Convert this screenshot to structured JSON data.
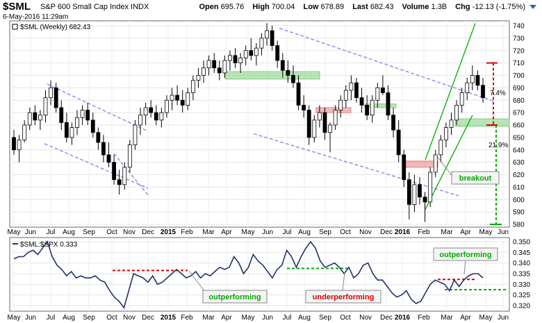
{
  "header": {
    "symbol": "$SML",
    "name": "S&P 600 Small Cap Index  INDX",
    "date": "6-May-2016 11:29am",
    "open_label": "Open",
    "open": "695.76",
    "high_label": "High",
    "high": "700.04",
    "low_label": "Low",
    "low": "678.89",
    "last_label": "Last",
    "last": "682.43",
    "volume_label": "Volume",
    "volume": "1.3B",
    "chg_label": "Chg",
    "chg": "-12.13 (-1.75%)"
  },
  "chart_data": [
    {
      "type": "candlestick",
      "legend": "$SML (Weekly) 682.43",
      "ylim": [
        575,
        745
      ],
      "yticks": [
        580,
        590,
        600,
        610,
        620,
        630,
        640,
        650,
        660,
        670,
        680,
        690,
        700,
        710,
        720,
        730,
        740
      ],
      "x_tick_labels": [
        "May",
        "Jun",
        "Jul",
        "Aug",
        "Sep",
        "Oct",
        "Nov",
        "Dec",
        "2015",
        "Feb",
        "Mar",
        "Apr",
        "May",
        "Jun",
        "Jul",
        "Aug",
        "Sep",
        "Oct",
        "Nov",
        "Dec",
        "2016",
        "Feb",
        "Mar",
        "Apr",
        "May",
        "Jun"
      ],
      "bold_x_labels": [
        "2015",
        "2016"
      ],
      "candles": [
        [
          650,
          656,
          636,
          640
        ],
        [
          640,
          652,
          630,
          648
        ],
        [
          648,
          664,
          646,
          660
        ],
        [
          660,
          674,
          656,
          670
        ],
        [
          670,
          676,
          660,
          664
        ],
        [
          664,
          672,
          656,
          668
        ],
        [
          668,
          688,
          662,
          682
        ],
        [
          682,
          696,
          676,
          690
        ],
        [
          690,
          694,
          670,
          674
        ],
        [
          674,
          680,
          656,
          662
        ],
        [
          662,
          670,
          646,
          650
        ],
        [
          650,
          662,
          644,
          658
        ],
        [
          658,
          672,
          652,
          666
        ],
        [
          666,
          676,
          660,
          672
        ],
        [
          672,
          678,
          660,
          664
        ],
        [
          664,
          670,
          650,
          654
        ],
        [
          654,
          658,
          640,
          646
        ],
        [
          646,
          652,
          630,
          636
        ],
        [
          636,
          646,
          626,
          630
        ],
        [
          630,
          636,
          612,
          616
        ],
        [
          616,
          624,
          604,
          612
        ],
        [
          612,
          630,
          608,
          626
        ],
        [
          626,
          648,
          622,
          644
        ],
        [
          644,
          664,
          640,
          660
        ],
        [
          660,
          674,
          652,
          668
        ],
        [
          668,
          678,
          660,
          674
        ],
        [
          674,
          680,
          666,
          670
        ],
        [
          670,
          676,
          660,
          664
        ],
        [
          664,
          674,
          658,
          670
        ],
        [
          670,
          684,
          666,
          680
        ],
        [
          680,
          690,
          672,
          684
        ],
        [
          684,
          692,
          676,
          680
        ],
        [
          680,
          688,
          670,
          676
        ],
        [
          676,
          690,
          672,
          686
        ],
        [
          686,
          700,
          680,
          696
        ],
        [
          696,
          706,
          690,
          700
        ],
        [
          700,
          712,
          694,
          706
        ],
        [
          706,
          716,
          700,
          712
        ],
        [
          712,
          718,
          702,
          706
        ],
        [
          706,
          712,
          696,
          702
        ],
        [
          702,
          716,
          698,
          712
        ],
        [
          712,
          720,
          704,
          716
        ],
        [
          716,
          722,
          706,
          710
        ],
        [
          710,
          718,
          702,
          714
        ],
        [
          714,
          724,
          708,
          720
        ],
        [
          720,
          730,
          712,
          716
        ],
        [
          716,
          726,
          708,
          722
        ],
        [
          722,
          734,
          716,
          730
        ],
        [
          730,
          742,
          724,
          736
        ],
        [
          736,
          740,
          720,
          724
        ],
        [
          724,
          728,
          706,
          712
        ],
        [
          712,
          718,
          698,
          704
        ],
        [
          704,
          712,
          694,
          700
        ],
        [
          700,
          708,
          690,
          694
        ],
        [
          694,
          700,
          672,
          676
        ],
        [
          676,
          684,
          666,
          672
        ],
        [
          672,
          676,
          644,
          650
        ],
        [
          650,
          668,
          646,
          664
        ],
        [
          664,
          676,
          658,
          670
        ],
        [
          670,
          674,
          648,
          654
        ],
        [
          654,
          662,
          638,
          660
        ],
        [
          660,
          676,
          656,
          672
        ],
        [
          672,
          684,
          666,
          680
        ],
        [
          680,
          692,
          674,
          688
        ],
        [
          688,
          700,
          680,
          694
        ],
        [
          694,
          698,
          678,
          682
        ],
        [
          682,
          690,
          670,
          676
        ],
        [
          676,
          684,
          664,
          668
        ],
        [
          668,
          684,
          662,
          680
        ],
        [
          680,
          694,
          674,
          690
        ],
        [
          690,
          700,
          684,
          686
        ],
        [
          686,
          692,
          664,
          668
        ],
        [
          668,
          674,
          650,
          656
        ],
        [
          656,
          664,
          630,
          636
        ],
        [
          636,
          640,
          610,
          616
        ],
        [
          616,
          622,
          584,
          596
        ],
        [
          596,
          620,
          590,
          612
        ],
        [
          612,
          618,
          596,
          602
        ],
        [
          602,
          606,
          582,
          598
        ],
        [
          598,
          626,
          594,
          622
        ],
        [
          622,
          640,
          618,
          636
        ],
        [
          636,
          652,
          630,
          648
        ],
        [
          648,
          662,
          642,
          658
        ],
        [
          658,
          670,
          652,
          664
        ],
        [
          664,
          680,
          660,
          676
        ],
        [
          676,
          690,
          670,
          686
        ],
        [
          686,
          698,
          680,
          694
        ],
        [
          694,
          708,
          688,
          700
        ],
        [
          700,
          704,
          688,
          692
        ],
        [
          692,
          698,
          678,
          682
        ]
      ],
      "annotations": {
        "breakout": "breakout",
        "pct_small": "7.4%",
        "pct_large": "21.9%"
      }
    },
    {
      "type": "line",
      "legend": "$SML:$SPX 0.333",
      "ylim": [
        0.3185,
        0.351
      ],
      "yticks": [
        0.32,
        0.325,
        0.33,
        0.335,
        0.34,
        0.345,
        0.35
      ],
      "x_tick_labels": [
        "May",
        "Jun",
        "Jul",
        "Aug",
        "Sep",
        "Oct",
        "Nov",
        "Dec",
        "2015",
        "Feb",
        "Mar",
        "Apr",
        "May",
        "Jun",
        "Jul",
        "Aug",
        "Sep",
        "Oct",
        "Nov",
        "Dec",
        "2016",
        "Feb",
        "Mar",
        "Apr",
        "May",
        "Jun"
      ],
      "bold_x_labels": [
        "2015",
        "2016"
      ],
      "values": [
        0.342,
        0.343,
        0.343,
        0.345,
        0.346,
        0.344,
        0.347,
        0.35,
        0.343,
        0.339,
        0.337,
        0.334,
        0.336,
        0.333,
        0.334,
        0.333,
        0.333,
        0.334,
        0.332,
        0.331,
        0.327,
        0.324,
        0.322,
        0.319,
        0.327,
        0.335,
        0.334,
        0.333,
        0.331,
        0.334,
        0.33,
        0.331,
        0.333,
        0.335,
        0.337,
        0.335,
        0.333,
        0.334,
        0.336,
        0.333,
        0.335,
        0.334,
        0.336,
        0.338,
        0.337,
        0.338,
        0.343,
        0.34,
        0.335,
        0.338,
        0.344,
        0.341,
        0.339,
        0.336,
        0.333,
        0.337,
        0.339,
        0.346,
        0.343,
        0.338,
        0.343,
        0.347,
        0.35,
        0.347,
        0.341,
        0.338,
        0.339,
        0.34,
        0.338,
        0.335,
        0.338,
        0.333,
        0.335,
        0.339,
        0.34,
        0.335,
        0.332,
        0.332,
        0.329,
        0.326,
        0.324,
        0.325,
        0.327,
        0.323,
        0.321,
        0.322,
        0.326,
        0.33,
        0.332,
        0.331,
        0.33,
        0.327,
        0.332,
        0.329,
        0.332,
        0.334,
        0.335,
        0.335,
        0.333
      ],
      "annotations": {
        "outperforming_1": "outperforming",
        "underperforming": "underperforming",
        "outperforming_2": "outperforming"
      }
    }
  ],
  "colors": {
    "channel_line": "#8888ee",
    "trend_line": "#00aa00",
    "zone_green": "#7fd07f",
    "zone_red": "#e88080",
    "red_dash": "#dd0000",
    "green_dash": "#00aa00",
    "ratio_line": "#223366",
    "down_candle": "#000000",
    "up_candle": "#ffffff"
  }
}
